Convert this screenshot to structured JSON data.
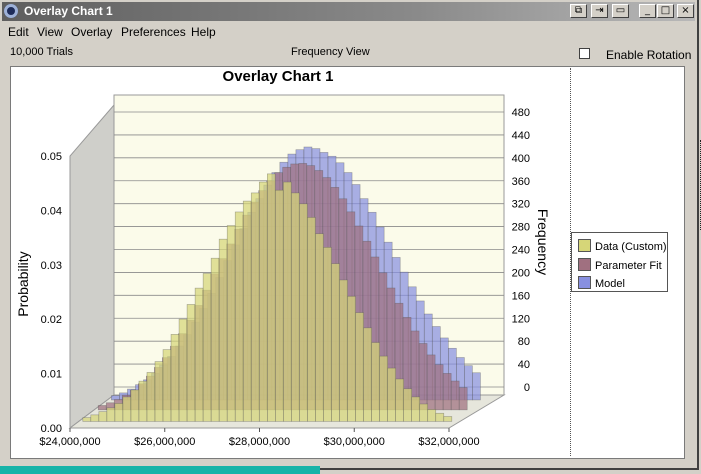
{
  "window": {
    "title": "Overlay Chart 1"
  },
  "title_buttons": [
    "⧉",
    "⇥",
    "▭",
    "_",
    "□",
    "×"
  ],
  "menu": {
    "items": [
      "Edit",
      "View",
      "Overlay",
      "Preferences",
      "Help"
    ]
  },
  "toolbar": {
    "trials_label": "10,000 Trials",
    "view_label": "Frequency View",
    "rotation_label": "Enable Rotation",
    "rotation_checked": false
  },
  "colors": {
    "data": "#d6d678",
    "fit": "#a07080",
    "model": "#8890e0",
    "plot_bg": "#fbfbea"
  },
  "chart_data": {
    "type": "bar",
    "title": "Overlay Chart 1",
    "ylabel": "Probability",
    "y2label": "Frequency",
    "x_ticks": [
      "$24,000,000",
      "$26,000,000",
      "$28,000,000",
      "$30,000,000",
      "$32,000,000"
    ],
    "y_ticks": [
      "0.00",
      "0.01",
      "0.02",
      "0.03",
      "0.04",
      "0.05"
    ],
    "y2_ticks": [
      "0",
      "40",
      "80",
      "120",
      "160",
      "200",
      "240",
      "280",
      "320",
      "360",
      "400",
      "440",
      "480"
    ],
    "ylim": [
      0,
      0.05
    ],
    "y2lim": [
      0,
      480
    ],
    "x_range": [
      24000000,
      32000000
    ],
    "legend": {
      "position": "right"
    },
    "series": [
      {
        "name": "Data (Custom)",
        "values": [
          0.0007,
          0.0012,
          0.0018,
          0.0025,
          0.0033,
          0.0045,
          0.0058,
          0.0074,
          0.009,
          0.011,
          0.0132,
          0.016,
          0.0188,
          0.0215,
          0.0245,
          0.0272,
          0.03,
          0.0335,
          0.036,
          0.0385,
          0.0405,
          0.042,
          0.044,
          0.0455,
          0.0425,
          0.044,
          0.042,
          0.04,
          0.0375,
          0.0345,
          0.032,
          0.029,
          0.026,
          0.023,
          0.02,
          0.0172,
          0.0145,
          0.012,
          0.0098,
          0.0078,
          0.006,
          0.0045,
          0.0032,
          0.0022,
          0.0015,
          0.0009
        ]
      },
      {
        "name": "Parameter Fit",
        "values": [
          0.0008,
          0.0013,
          0.0019,
          0.0027,
          0.0036,
          0.0048,
          0.0062,
          0.0078,
          0.0096,
          0.0117,
          0.014,
          0.0165,
          0.0192,
          0.022,
          0.025,
          0.0278,
          0.0305,
          0.0332,
          0.0358,
          0.0382,
          0.0403,
          0.0421,
          0.0436,
          0.0446,
          0.0452,
          0.0453,
          0.0449,
          0.044,
          0.0427,
          0.0409,
          0.0388,
          0.0364,
          0.0338,
          0.031,
          0.0281,
          0.0252,
          0.0224,
          0.0196,
          0.017,
          0.0145,
          0.0122,
          0.0101,
          0.0083,
          0.0067,
          0.0053,
          0.0041
        ]
      },
      {
        "name": "Model",
        "values": [
          0.0008,
          0.0013,
          0.002,
          0.0028,
          0.0037,
          0.0049,
          0.0064,
          0.008,
          0.0099,
          0.012,
          0.0143,
          0.0168,
          0.0196,
          0.0225,
          0.0256,
          0.0285,
          0.0315,
          0.0345,
          0.037,
          0.0395,
          0.0418,
          0.0437,
          0.0452,
          0.046,
          0.0465,
          0.0462,
          0.0455,
          0.0448,
          0.0436,
          0.0418,
          0.0396,
          0.037,
          0.0345,
          0.0318,
          0.029,
          0.0262,
          0.0235,
          0.0208,
          0.0182,
          0.0158,
          0.0135,
          0.0114,
          0.0095,
          0.0078,
          0.0063,
          0.005
        ]
      }
    ]
  }
}
